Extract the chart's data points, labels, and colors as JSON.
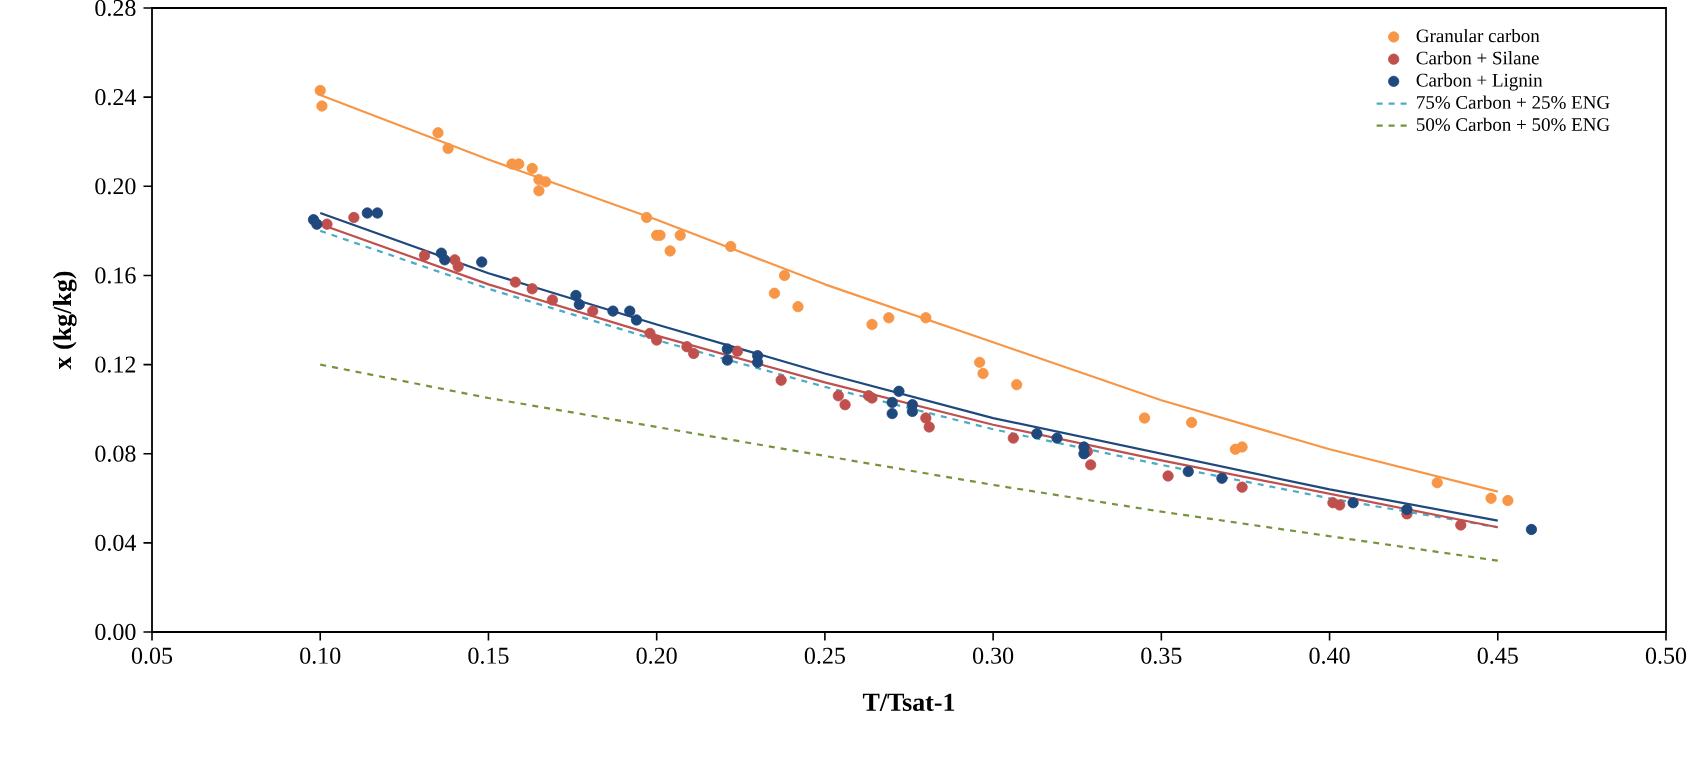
{
  "chart_data": {
    "type": "scatter",
    "xlabel": "T/Tsat-1",
    "ylabel": "x (kg/kg)",
    "legend": "top right",
    "grid": false,
    "xlim": [
      0.05,
      0.5
    ],
    "xticks": [
      {
        "value": 0.05,
        "label": "0.05"
      },
      {
        "value": 0.1,
        "label": "0.10"
      },
      {
        "value": 0.15,
        "label": "0.15"
      },
      {
        "value": 0.2,
        "label": "0.20"
      },
      {
        "value": 0.25,
        "label": "0.25"
      },
      {
        "value": 0.3,
        "label": "0.30"
      },
      {
        "value": 0.35,
        "label": "0.35"
      },
      {
        "value": 0.4,
        "label": "0.40"
      },
      {
        "value": 0.45,
        "label": "0.45"
      },
      {
        "value": 0.5,
        "label": "0.50"
      }
    ],
    "ylim": [
      0,
      0.28
    ],
    "yticks": [
      {
        "value": 0,
        "label": "0.00"
      },
      {
        "value": 0.04,
        "label": "0.04"
      },
      {
        "value": 0.08,
        "label": "0.08"
      },
      {
        "value": 0.12,
        "label": "0.12"
      },
      {
        "value": 0.16,
        "label": "0.16"
      },
      {
        "value": 0.2,
        "label": "0.20"
      },
      {
        "value": 0.24,
        "label": "0.24"
      },
      {
        "value": 0.28,
        "label": "0.28"
      }
    ],
    "series": [
      {
        "name": "Granular carbon",
        "marker": "circle",
        "color": "#f79646",
        "x": [
          0.1,
          0.1005,
          0.135,
          0.138,
          0.157,
          0.159,
          0.163,
          0.165,
          0.167,
          0.165,
          0.197,
          0.2,
          0.201,
          0.207,
          0.204,
          0.222,
          0.238,
          0.235,
          0.242,
          0.264,
          0.269,
          0.28,
          0.296,
          0.297,
          0.307,
          0.345,
          0.359,
          0.372,
          0.374,
          0.432,
          0.448,
          0.453
        ],
        "values": [
          0.243,
          0.236,
          0.224,
          0.217,
          0.21,
          0.21,
          0.208,
          0.203,
          0.202,
          0.198,
          0.186,
          0.178,
          0.178,
          0.178,
          0.171,
          0.173,
          0.16,
          0.152,
          0.146,
          0.138,
          0.141,
          0.141,
          0.121,
          0.116,
          0.111,
          0.096,
          0.094,
          0.082,
          0.083,
          0.067,
          0.06,
          0.059
        ]
      },
      {
        "name": "Carbon + Silane",
        "marker": "circle",
        "color": "#c0504d",
        "x": [
          0.102,
          0.11,
          0.131,
          0.14,
          0.141,
          0.158,
          0.163,
          0.169,
          0.181,
          0.198,
          0.2,
          0.209,
          0.211,
          0.224,
          0.237,
          0.254,
          0.256,
          0.263,
          0.264,
          0.28,
          0.281,
          0.306,
          0.328,
          0.329,
          0.352,
          0.374,
          0.401,
          0.403,
          0.423,
          0.439
        ],
        "values": [
          0.183,
          0.186,
          0.169,
          0.167,
          0.164,
          0.157,
          0.154,
          0.149,
          0.144,
          0.134,
          0.131,
          0.128,
          0.125,
          0.126,
          0.113,
          0.106,
          0.102,
          0.106,
          0.105,
          0.096,
          0.092,
          0.087,
          0.081,
          0.075,
          0.07,
          0.065,
          0.058,
          0.057,
          0.053,
          0.048
        ]
      },
      {
        "name": "Carbon + Lignin",
        "marker": "circle",
        "color": "#1f497d",
        "x": [
          0.098,
          0.099,
          0.114,
          0.117,
          0.136,
          0.137,
          0.148,
          0.176,
          0.177,
          0.187,
          0.192,
          0.194,
          0.221,
          0.221,
          0.23,
          0.23,
          0.272,
          0.27,
          0.27,
          0.276,
          0.276,
          0.313,
          0.319,
          0.327,
          0.327,
          0.358,
          0.368,
          0.407,
          0.423,
          0.46
        ],
        "values": [
          0.185,
          0.183,
          0.188,
          0.188,
          0.17,
          0.167,
          0.166,
          0.151,
          0.147,
          0.144,
          0.144,
          0.14,
          0.127,
          0.122,
          0.124,
          0.121,
          0.108,
          0.103,
          0.098,
          0.102,
          0.099,
          0.089,
          0.087,
          0.083,
          0.08,
          0.072,
          0.069,
          0.058,
          0.055,
          0.046
        ]
      },
      {
        "name": "75% Carbon + 25% ENG",
        "type": "line",
        "line_style": "dashed",
        "marker": "none",
        "color": "#4bacc6",
        "x": [
          0.1,
          0.15,
          0.2,
          0.25,
          0.3,
          0.35,
          0.4,
          0.45
        ],
        "values": [
          0.18,
          0.154,
          0.131,
          0.11,
          0.091,
          0.075,
          0.06,
          0.047
        ]
      },
      {
        "name": "50% Carbon + 50% ENG",
        "type": "line",
        "line_style": "dashed",
        "marker": "none",
        "color": "#77933c",
        "x": [
          0.1,
          0.15,
          0.2,
          0.25,
          0.3,
          0.35,
          0.4,
          0.45
        ],
        "values": [
          0.12,
          0.105,
          0.092,
          0.079,
          0.066,
          0.054,
          0.043,
          0.032
        ]
      },
      {
        "type": "line",
        "line_style": "solid",
        "marker": "none",
        "color": "#f79646",
        "x": [
          0.1,
          0.15,
          0.2,
          0.25,
          0.3,
          0.35,
          0.4,
          0.45
        ],
        "values": [
          0.241,
          0.212,
          0.185,
          0.156,
          0.13,
          0.104,
          0.082,
          0.063
        ]
      },
      {
        "type": "line",
        "line_style": "solid",
        "marker": "none",
        "color": "#c0504d",
        "x": [
          0.1,
          0.15,
          0.2,
          0.25,
          0.3,
          0.35,
          0.4,
          0.45
        ],
        "values": [
          0.183,
          0.156,
          0.133,
          0.112,
          0.093,
          0.077,
          0.062,
          0.047
        ]
      },
      {
        "type": "line",
        "line_style": "solid",
        "marker": "none",
        "color": "#1f497d",
        "x": [
          0.1,
          0.15,
          0.2,
          0.25,
          0.3,
          0.35,
          0.4,
          0.45
        ],
        "values": [
          0.188,
          0.161,
          0.138,
          0.116,
          0.096,
          0.08,
          0.064,
          0.05
        ]
      }
    ]
  }
}
